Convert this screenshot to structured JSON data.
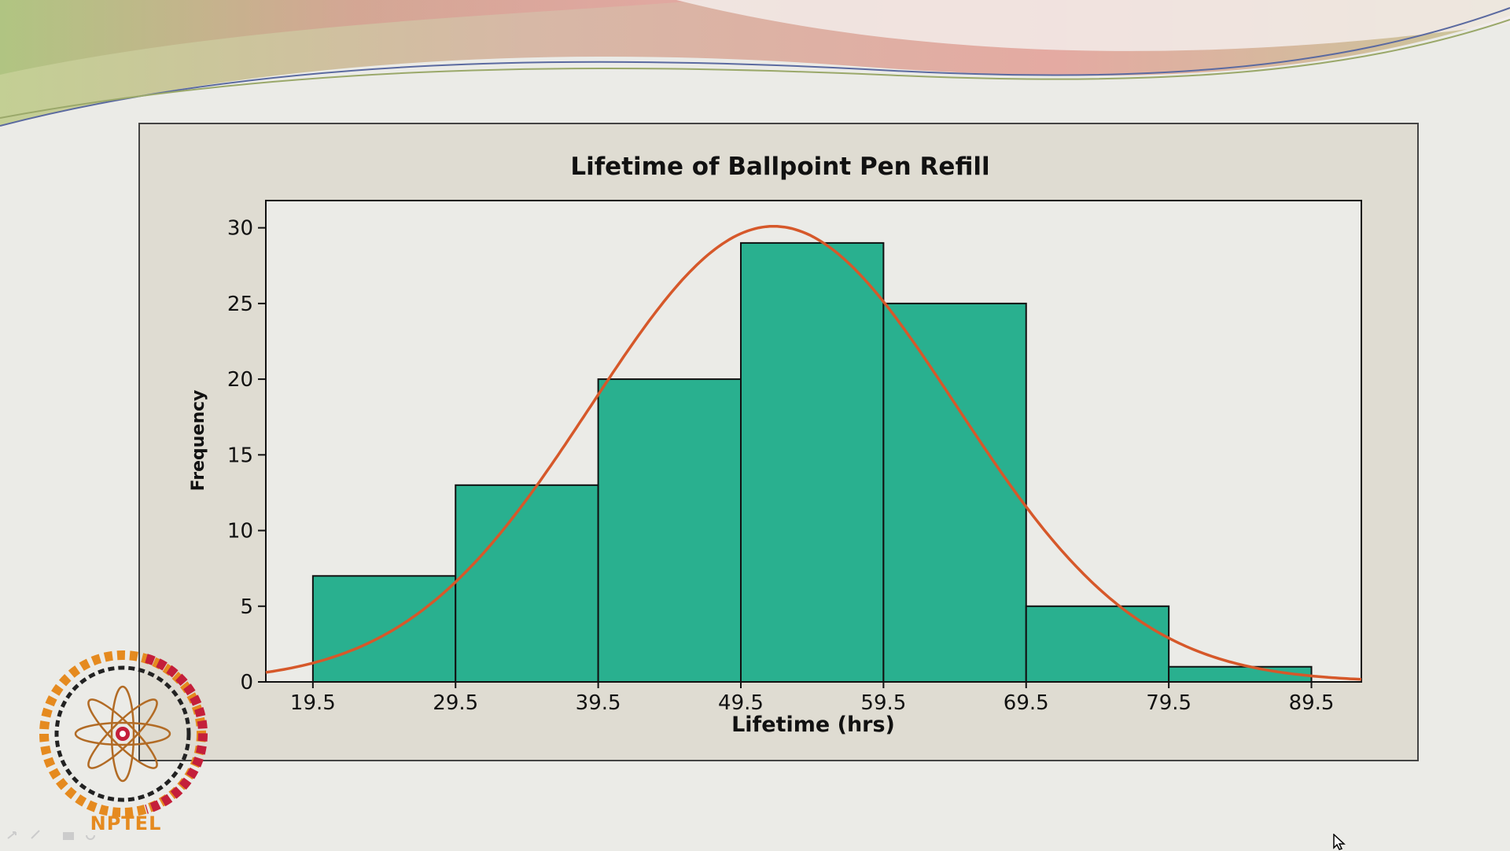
{
  "logo": {
    "text": "NPTEL"
  },
  "chart_data": {
    "type": "bar",
    "title": "Lifetime of Ballpoint Pen Refill",
    "xlabel": "Lifetime (hrs)",
    "ylabel": "Frequency",
    "bin_edges": [
      19.5,
      29.5,
      39.5,
      49.5,
      59.5,
      69.5,
      79.5,
      89.5
    ],
    "values": [
      7,
      13,
      20,
      29,
      25,
      5,
      1
    ],
    "x_ticks": [
      "19.5",
      "29.5",
      "39.5",
      "49.5",
      "59.5",
      "69.5",
      "79.5",
      "89.5"
    ],
    "y_ticks": [
      0,
      5,
      10,
      15,
      20,
      25,
      30
    ],
    "xlim": [
      16.2,
      93
    ],
    "ylim": [
      0,
      31.8
    ],
    "fit_curve": {
      "type": "normal",
      "mean": 51.8,
      "sd": 12.8,
      "peak": 30.1
    },
    "colors": {
      "bar": "#29b08f",
      "curve": "#d6582a",
      "plot_bg": "#ebebe7",
      "frame_bg": "#dfdcd2"
    },
    "grid": false,
    "legend": "none"
  }
}
